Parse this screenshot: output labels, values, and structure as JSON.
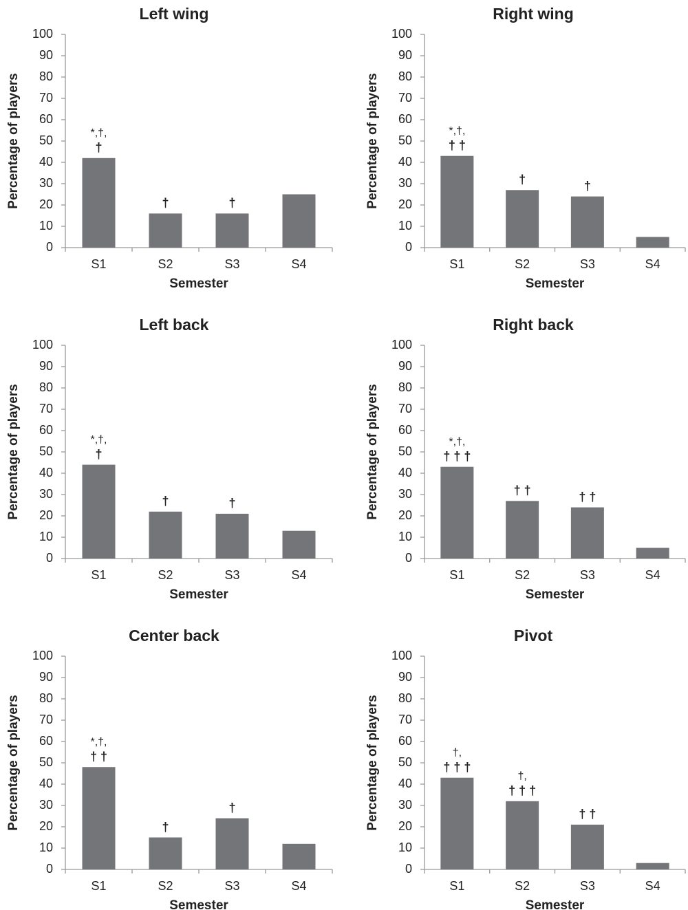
{
  "chart_data": [
    {
      "type": "bar",
      "title": "Left wing",
      "xlabel": "Semester",
      "ylabel": "Percentage of players",
      "categories": [
        "S1",
        "S2",
        "S3",
        "S4"
      ],
      "values": [
        42,
        16,
        16,
        25
      ],
      "color": "#747578",
      "ylim": [
        0,
        100
      ],
      "yticks": [
        0,
        10,
        20,
        30,
        40,
        50,
        60,
        70,
        80,
        90,
        100
      ],
      "annotations": [
        [
          "*,†,",
          "†"
        ],
        [
          "†"
        ],
        [
          "†"
        ],
        null
      ]
    },
    {
      "type": "bar",
      "title": "Right wing",
      "xlabel": "Semester",
      "ylabel": "Percentage of players",
      "categories": [
        "S1",
        "S2",
        "S3",
        "S4"
      ],
      "values": [
        43,
        27,
        24,
        5
      ],
      "color": "#747578",
      "ylim": [
        0,
        100
      ],
      "yticks": [
        0,
        10,
        20,
        30,
        40,
        50,
        60,
        70,
        80,
        90,
        100
      ],
      "annotations": [
        [
          "*,†,",
          "† †"
        ],
        [
          "†"
        ],
        [
          "†"
        ],
        null
      ]
    },
    {
      "type": "bar",
      "title": "Left back",
      "xlabel": "Semester",
      "ylabel": "Percentage of players",
      "categories": [
        "S1",
        "S2",
        "S3",
        "S4"
      ],
      "values": [
        44,
        22,
        21,
        13
      ],
      "color": "#747578",
      "ylim": [
        0,
        100
      ],
      "yticks": [
        0,
        10,
        20,
        30,
        40,
        50,
        60,
        70,
        80,
        90,
        100
      ],
      "annotations": [
        [
          "*,†,",
          "†"
        ],
        [
          "†"
        ],
        [
          "†"
        ],
        null
      ]
    },
    {
      "type": "bar",
      "title": "Right back",
      "xlabel": "Semester",
      "ylabel": "Percentage of players",
      "categories": [
        "S1",
        "S2",
        "S3",
        "S4"
      ],
      "values": [
        43,
        27,
        24,
        5
      ],
      "color": "#747578",
      "ylim": [
        0,
        100
      ],
      "yticks": [
        0,
        10,
        20,
        30,
        40,
        50,
        60,
        70,
        80,
        90,
        100
      ],
      "annotations": [
        [
          "*,†,",
          "† † †"
        ],
        [
          "† †"
        ],
        [
          "† †"
        ],
        null
      ]
    },
    {
      "type": "bar",
      "title": "Center back",
      "xlabel": "Semester",
      "ylabel": "Percentage of players",
      "categories": [
        "S1",
        "S2",
        "S3",
        "S4"
      ],
      "values": [
        48,
        15,
        24,
        12
      ],
      "color": "#747578",
      "ylim": [
        0,
        100
      ],
      "yticks": [
        0,
        10,
        20,
        30,
        40,
        50,
        60,
        70,
        80,
        90,
        100
      ],
      "annotations": [
        [
          "*,†,",
          "† †"
        ],
        [
          "†"
        ],
        [
          "†"
        ],
        null
      ]
    },
    {
      "type": "bar",
      "title": "Pivot",
      "xlabel": "Semester",
      "ylabel": "Percentage of players",
      "categories": [
        "S1",
        "S2",
        "S3",
        "S4"
      ],
      "values": [
        43,
        32,
        21,
        3
      ],
      "color": "#747578",
      "ylim": [
        0,
        100
      ],
      "yticks": [
        0,
        10,
        20,
        30,
        40,
        50,
        60,
        70,
        80,
        90,
        100
      ],
      "annotations": [
        [
          "†,",
          "† † †"
        ],
        [
          "†,",
          "† † †"
        ],
        [
          "† †"
        ],
        null
      ]
    }
  ]
}
